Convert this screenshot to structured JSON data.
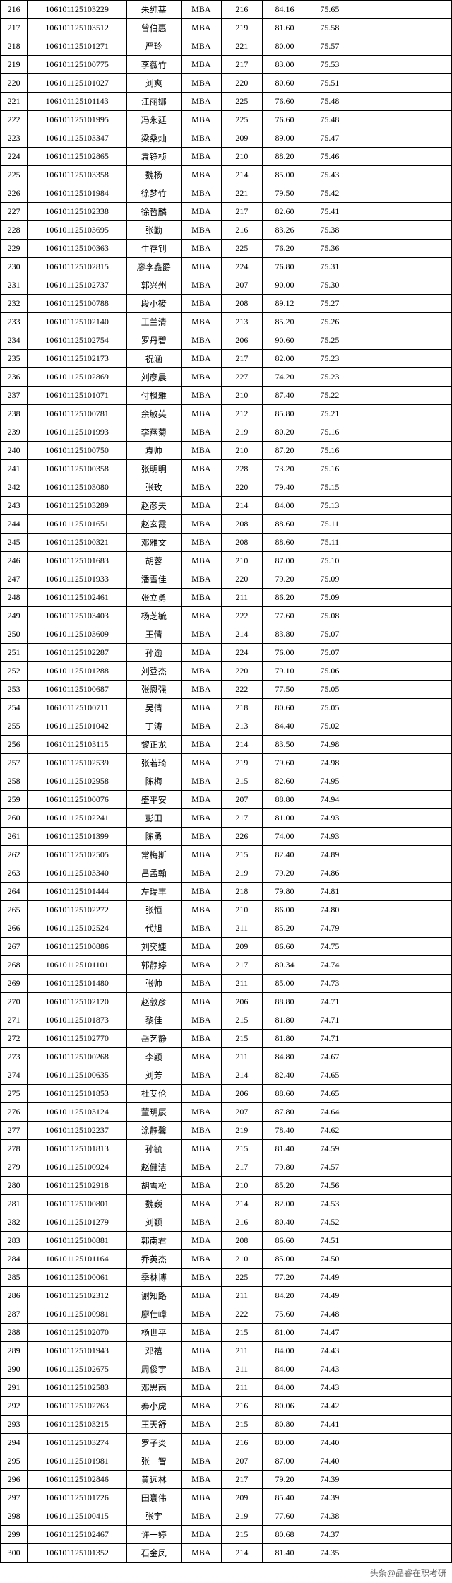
{
  "colors": {
    "border": "#000000",
    "background": "#ffffff",
    "text": "#000000",
    "footer": "#666666"
  },
  "footer": {
    "text": "头条@品睿在职考研"
  },
  "rows": [
    {
      "idx": 216,
      "id": "106101125103229",
      "name": "朱纯莘",
      "prog": "MBA",
      "n1": 216,
      "n2": "84.16",
      "n3": "75.65"
    },
    {
      "idx": 217,
      "id": "106101125103512",
      "name": "曾伯惠",
      "prog": "MBA",
      "n1": 219,
      "n2": "81.60",
      "n3": "75.58"
    },
    {
      "idx": 218,
      "id": "106101125101271",
      "name": "严玲",
      "prog": "MBA",
      "n1": 221,
      "n2": "80.00",
      "n3": "75.57"
    },
    {
      "idx": 219,
      "id": "106101125100775",
      "name": "李薇竹",
      "prog": "MBA",
      "n1": 217,
      "n2": "83.00",
      "n3": "75.53"
    },
    {
      "idx": 220,
      "id": "106101125101027",
      "name": "刘爽",
      "prog": "MBA",
      "n1": 220,
      "n2": "80.60",
      "n3": "75.51"
    },
    {
      "idx": 221,
      "id": "106101125101143",
      "name": "江丽娜",
      "prog": "MBA",
      "n1": 225,
      "n2": "76.60",
      "n3": "75.48"
    },
    {
      "idx": 222,
      "id": "106101125101995",
      "name": "冯永廷",
      "prog": "MBA",
      "n1": 225,
      "n2": "76.60",
      "n3": "75.48"
    },
    {
      "idx": 223,
      "id": "106101125103347",
      "name": "梁桑灿",
      "prog": "MBA",
      "n1": 209,
      "n2": "89.00",
      "n3": "75.47"
    },
    {
      "idx": 224,
      "id": "106101125102865",
      "name": "袁铮桢",
      "prog": "MBA",
      "n1": 210,
      "n2": "88.20",
      "n3": "75.46"
    },
    {
      "idx": 225,
      "id": "106101125103358",
      "name": "魏杨",
      "prog": "MBA",
      "n1": 214,
      "n2": "85.00",
      "n3": "75.43"
    },
    {
      "idx": 226,
      "id": "106101125101984",
      "name": "徐梦竹",
      "prog": "MBA",
      "n1": 221,
      "n2": "79.50",
      "n3": "75.42"
    },
    {
      "idx": 227,
      "id": "106101125102338",
      "name": "徐哲麟",
      "prog": "MBA",
      "n1": 217,
      "n2": "82.60",
      "n3": "75.41"
    },
    {
      "idx": 228,
      "id": "106101125103695",
      "name": "张勤",
      "prog": "MBA",
      "n1": 216,
      "n2": "83.26",
      "n3": "75.38"
    },
    {
      "idx": 229,
      "id": "106101125100363",
      "name": "生存钊",
      "prog": "MBA",
      "n1": 225,
      "n2": "76.20",
      "n3": "75.36"
    },
    {
      "idx": 230,
      "id": "106101125102815",
      "name": "廖李鑫爵",
      "prog": "MBA",
      "n1": 224,
      "n2": "76.80",
      "n3": "75.31"
    },
    {
      "idx": 231,
      "id": "106101125102737",
      "name": "郭兴州",
      "prog": "MBA",
      "n1": 207,
      "n2": "90.00",
      "n3": "75.30"
    },
    {
      "idx": 232,
      "id": "106101125100788",
      "name": "段小筱",
      "prog": "MBA",
      "n1": 208,
      "n2": "89.12",
      "n3": "75.27"
    },
    {
      "idx": 233,
      "id": "106101125102140",
      "name": "王兰清",
      "prog": "MBA",
      "n1": 213,
      "n2": "85.20",
      "n3": "75.26"
    },
    {
      "idx": 234,
      "id": "106101125102754",
      "name": "罗丹碧",
      "prog": "MBA",
      "n1": 206,
      "n2": "90.60",
      "n3": "75.25"
    },
    {
      "idx": 235,
      "id": "106101125102173",
      "name": "祝涵",
      "prog": "MBA",
      "n1": 217,
      "n2": "82.00",
      "n3": "75.23"
    },
    {
      "idx": 236,
      "id": "106101125102869",
      "name": "刘彦晨",
      "prog": "MBA",
      "n1": 227,
      "n2": "74.20",
      "n3": "75.23"
    },
    {
      "idx": 237,
      "id": "106101125101071",
      "name": "付枫雅",
      "prog": "MBA",
      "n1": 210,
      "n2": "87.40",
      "n3": "75.22"
    },
    {
      "idx": 238,
      "id": "106101125100781",
      "name": "余敏英",
      "prog": "MBA",
      "n1": 212,
      "n2": "85.80",
      "n3": "75.21"
    },
    {
      "idx": 239,
      "id": "106101125101993",
      "name": "李燕菊",
      "prog": "MBA",
      "n1": 219,
      "n2": "80.20",
      "n3": "75.16"
    },
    {
      "idx": 240,
      "id": "106101125100750",
      "name": "袁帅",
      "prog": "MBA",
      "n1": 210,
      "n2": "87.20",
      "n3": "75.16"
    },
    {
      "idx": 241,
      "id": "106101125100358",
      "name": "张明明",
      "prog": "MBA",
      "n1": 228,
      "n2": "73.20",
      "n3": "75.16"
    },
    {
      "idx": 242,
      "id": "106101125103080",
      "name": "张玫",
      "prog": "MBA",
      "n1": 220,
      "n2": "79.40",
      "n3": "75.15"
    },
    {
      "idx": 243,
      "id": "106101125103289",
      "name": "赵彦夫",
      "prog": "MBA",
      "n1": 214,
      "n2": "84.00",
      "n3": "75.13"
    },
    {
      "idx": 244,
      "id": "106101125101651",
      "name": "赵玄霞",
      "prog": "MBA",
      "n1": 208,
      "n2": "88.60",
      "n3": "75.11"
    },
    {
      "idx": 245,
      "id": "106101125100321",
      "name": "邓雅文",
      "prog": "MBA",
      "n1": 208,
      "n2": "88.60",
      "n3": "75.11"
    },
    {
      "idx": 246,
      "id": "106101125101683",
      "name": "胡蓉",
      "prog": "MBA",
      "n1": 210,
      "n2": "87.00",
      "n3": "75.10"
    },
    {
      "idx": 247,
      "id": "106101125101933",
      "name": "潘雪佳",
      "prog": "MBA",
      "n1": 220,
      "n2": "79.20",
      "n3": "75.09"
    },
    {
      "idx": 248,
      "id": "106101125102461",
      "name": "张立勇",
      "prog": "MBA",
      "n1": 211,
      "n2": "86.20",
      "n3": "75.09"
    },
    {
      "idx": 249,
      "id": "106101125103403",
      "name": "杨芝毓",
      "prog": "MBA",
      "n1": 222,
      "n2": "77.60",
      "n3": "75.08"
    },
    {
      "idx": 250,
      "id": "106101125103609",
      "name": "王倩",
      "prog": "MBA",
      "n1": 214,
      "n2": "83.80",
      "n3": "75.07"
    },
    {
      "idx": 251,
      "id": "106101125102287",
      "name": "孙逾",
      "prog": "MBA",
      "n1": 224,
      "n2": "76.00",
      "n3": "75.07"
    },
    {
      "idx": 252,
      "id": "106101125101288",
      "name": "刘登杰",
      "prog": "MBA",
      "n1": 220,
      "n2": "79.10",
      "n3": "75.06"
    },
    {
      "idx": 253,
      "id": "106101125100687",
      "name": "张恩强",
      "prog": "MBA",
      "n1": 222,
      "n2": "77.50",
      "n3": "75.05"
    },
    {
      "idx": 254,
      "id": "106101125100711",
      "name": "吴倩",
      "prog": "MBA",
      "n1": 218,
      "n2": "80.60",
      "n3": "75.05"
    },
    {
      "idx": 255,
      "id": "106101125101042",
      "name": "丁涛",
      "prog": "MBA",
      "n1": 213,
      "n2": "84.40",
      "n3": "75.02"
    },
    {
      "idx": 256,
      "id": "106101125103115",
      "name": "黎正龙",
      "prog": "MBA",
      "n1": 214,
      "n2": "83.50",
      "n3": "74.98"
    },
    {
      "idx": 257,
      "id": "106101125102539",
      "name": "张若琦",
      "prog": "MBA",
      "n1": 219,
      "n2": "79.60",
      "n3": "74.98"
    },
    {
      "idx": 258,
      "id": "106101125102958",
      "name": "陈梅",
      "prog": "MBA",
      "n1": 215,
      "n2": "82.60",
      "n3": "74.95"
    },
    {
      "idx": 259,
      "id": "106101125100076",
      "name": "盛平安",
      "prog": "MBA",
      "n1": 207,
      "n2": "88.80",
      "n3": "74.94"
    },
    {
      "idx": 260,
      "id": "106101125102241",
      "name": "彭田",
      "prog": "MBA",
      "n1": 217,
      "n2": "81.00",
      "n3": "74.93"
    },
    {
      "idx": 261,
      "id": "106101125101399",
      "name": "陈勇",
      "prog": "MBA",
      "n1": 226,
      "n2": "74.00",
      "n3": "74.93"
    },
    {
      "idx": 262,
      "id": "106101125102505",
      "name": "常梅斯",
      "prog": "MBA",
      "n1": 215,
      "n2": "82.40",
      "n3": "74.89"
    },
    {
      "idx": 263,
      "id": "106101125103340",
      "name": "吕孟翰",
      "prog": "MBA",
      "n1": 219,
      "n2": "79.20",
      "n3": "74.86"
    },
    {
      "idx": 264,
      "id": "106101125101444",
      "name": "左瑞丰",
      "prog": "MBA",
      "n1": 218,
      "n2": "79.80",
      "n3": "74.81"
    },
    {
      "idx": 265,
      "id": "106101125102272",
      "name": "张恒",
      "prog": "MBA",
      "n1": 210,
      "n2": "86.00",
      "n3": "74.80"
    },
    {
      "idx": 266,
      "id": "106101125102524",
      "name": "代旭",
      "prog": "MBA",
      "n1": 211,
      "n2": "85.20",
      "n3": "74.79"
    },
    {
      "idx": 267,
      "id": "106101125100886",
      "name": "刘奕婕",
      "prog": "MBA",
      "n1": 209,
      "n2": "86.60",
      "n3": "74.75"
    },
    {
      "idx": 268,
      "id": "106101125101101",
      "name": "郭静婷",
      "prog": "MBA",
      "n1": 217,
      "n2": "80.34",
      "n3": "74.74"
    },
    {
      "idx": 269,
      "id": "106101125101480",
      "name": "张帅",
      "prog": "MBA",
      "n1": 211,
      "n2": "85.00",
      "n3": "74.73"
    },
    {
      "idx": 270,
      "id": "106101125102120",
      "name": "赵敦彦",
      "prog": "MBA",
      "n1": 206,
      "n2": "88.80",
      "n3": "74.71"
    },
    {
      "idx": 271,
      "id": "106101125101873",
      "name": "黎佳",
      "prog": "MBA",
      "n1": 215,
      "n2": "81.80",
      "n3": "74.71"
    },
    {
      "idx": 272,
      "id": "106101125102770",
      "name": "岳艺静",
      "prog": "MBA",
      "n1": 215,
      "n2": "81.80",
      "n3": "74.71"
    },
    {
      "idx": 273,
      "id": "106101125100268",
      "name": "李颖",
      "prog": "MBA",
      "n1": 211,
      "n2": "84.80",
      "n3": "74.67"
    },
    {
      "idx": 274,
      "id": "106101125100635",
      "name": "刘芳",
      "prog": "MBA",
      "n1": 214,
      "n2": "82.40",
      "n3": "74.65"
    },
    {
      "idx": 275,
      "id": "106101125101853",
      "name": "杜艾伦",
      "prog": "MBA",
      "n1": 206,
      "n2": "88.60",
      "n3": "74.65"
    },
    {
      "idx": 276,
      "id": "106101125103124",
      "name": "董玥辰",
      "prog": "MBA",
      "n1": 207,
      "n2": "87.80",
      "n3": "74.64"
    },
    {
      "idx": 277,
      "id": "106101125102237",
      "name": "涂静馨",
      "prog": "MBA",
      "n1": 219,
      "n2": "78.40",
      "n3": "74.62"
    },
    {
      "idx": 278,
      "id": "106101125101813",
      "name": "孙毓",
      "prog": "MBA",
      "n1": 215,
      "n2": "81.40",
      "n3": "74.59"
    },
    {
      "idx": 279,
      "id": "106101125100924",
      "name": "赵健洁",
      "prog": "MBA",
      "n1": 217,
      "n2": "79.80",
      "n3": "74.57"
    },
    {
      "idx": 280,
      "id": "106101125102918",
      "name": "胡雪松",
      "prog": "MBA",
      "n1": 210,
      "n2": "85.20",
      "n3": "74.56"
    },
    {
      "idx": 281,
      "id": "106101125100801",
      "name": "魏巍",
      "prog": "MBA",
      "n1": 214,
      "n2": "82.00",
      "n3": "74.53"
    },
    {
      "idx": 282,
      "id": "106101125101279",
      "name": "刘颖",
      "prog": "MBA",
      "n1": 216,
      "n2": "80.40",
      "n3": "74.52"
    },
    {
      "idx": 283,
      "id": "106101125100881",
      "name": "郭南君",
      "prog": "MBA",
      "n1": 208,
      "n2": "86.60",
      "n3": "74.51"
    },
    {
      "idx": 284,
      "id": "106101125101164",
      "name": "乔英杰",
      "prog": "MBA",
      "n1": 210,
      "n2": "85.00",
      "n3": "74.50"
    },
    {
      "idx": 285,
      "id": "106101125100061",
      "name": "季林博",
      "prog": "MBA",
      "n1": 225,
      "n2": "77.20",
      "n3": "74.49"
    },
    {
      "idx": 286,
      "id": "106101125102312",
      "name": "谢知路",
      "prog": "MBA",
      "n1": 211,
      "n2": "84.20",
      "n3": "74.49"
    },
    {
      "idx": 287,
      "id": "106101125100981",
      "name": "廖仕嶂",
      "prog": "MBA",
      "n1": 222,
      "n2": "75.60",
      "n3": "74.48"
    },
    {
      "idx": 288,
      "id": "106101125102070",
      "name": "杨世平",
      "prog": "MBA",
      "n1": 215,
      "n2": "81.00",
      "n3": "74.47"
    },
    {
      "idx": 289,
      "id": "106101125101943",
      "name": "邓禧",
      "prog": "MBA",
      "n1": 211,
      "n2": "84.00",
      "n3": "74.43"
    },
    {
      "idx": 290,
      "id": "106101125102675",
      "name": "周俊宇",
      "prog": "MBA",
      "n1": 211,
      "n2": "84.00",
      "n3": "74.43"
    },
    {
      "idx": 291,
      "id": "106101125102583",
      "name": "邓思雨",
      "prog": "MBA",
      "n1": 211,
      "n2": "84.00",
      "n3": "74.43"
    },
    {
      "idx": 292,
      "id": "106101125102763",
      "name": "秦小虎",
      "prog": "MBA",
      "n1": 216,
      "n2": "80.06",
      "n3": "74.42"
    },
    {
      "idx": 293,
      "id": "106101125103215",
      "name": "王天舒",
      "prog": "MBA",
      "n1": 215,
      "n2": "80.80",
      "n3": "74.41"
    },
    {
      "idx": 294,
      "id": "106101125103274",
      "name": "罗子炎",
      "prog": "MBA",
      "n1": 216,
      "n2": "80.00",
      "n3": "74.40"
    },
    {
      "idx": 295,
      "id": "106101125101981",
      "name": "张一智",
      "prog": "MBA",
      "n1": 207,
      "n2": "87.00",
      "n3": "74.40"
    },
    {
      "idx": 296,
      "id": "106101125102846",
      "name": "黄远林",
      "prog": "MBA",
      "n1": 217,
      "n2": "79.20",
      "n3": "74.39"
    },
    {
      "idx": 297,
      "id": "106101125101726",
      "name": "田寰伟",
      "prog": "MBA",
      "n1": 209,
      "n2": "85.40",
      "n3": "74.39"
    },
    {
      "idx": 298,
      "id": "106101125100415",
      "name": "张宇",
      "prog": "MBA",
      "n1": 219,
      "n2": "77.60",
      "n3": "74.38"
    },
    {
      "idx": 299,
      "id": "106101125102467",
      "name": "许一婷",
      "prog": "MBA",
      "n1": 215,
      "n2": "80.68",
      "n3": "74.37"
    },
    {
      "idx": 300,
      "id": "106101125101352",
      "name": "石金凤",
      "prog": "MBA",
      "n1": 214,
      "n2": "81.40",
      "n3": "74.35"
    }
  ]
}
